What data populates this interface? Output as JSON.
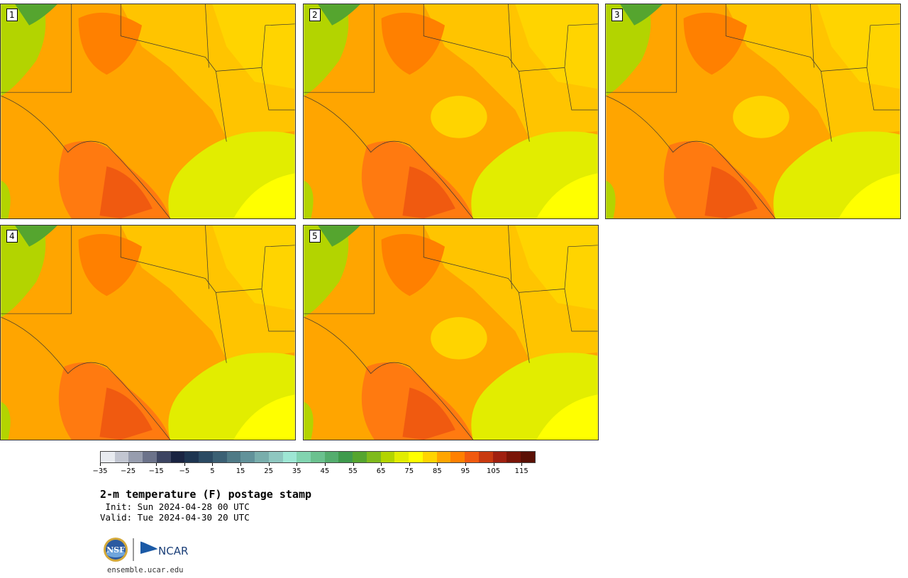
{
  "panels": [
    {
      "label": "1"
    },
    {
      "label": "2"
    },
    {
      "label": "3"
    },
    {
      "label": "4"
    },
    {
      "label": "5"
    }
  ],
  "colorbar": {
    "colors": [
      "#e8ebf0",
      "#c2c6d1",
      "#979dae",
      "#6c738a",
      "#3d4562",
      "#1a2442",
      "#1e3551",
      "#2b4a63",
      "#3b6074",
      "#4f7a86",
      "#62929a",
      "#79aeac",
      "#8fc7c0",
      "#9ee6d4",
      "#82d4b0",
      "#6bc18f",
      "#54ad6e",
      "#3f9a4d",
      "#55a52f",
      "#7fba1c",
      "#b3d400",
      "#e2ed00",
      "#ffff00",
      "#ffd400",
      "#ffa500",
      "#ff8000",
      "#f05a10",
      "#c83a10",
      "#a02010",
      "#7a1508",
      "#5a1005"
    ],
    "tick_labels": [
      "−35",
      "−25",
      "−15",
      "−5",
      "5",
      "15",
      "25",
      "35",
      "45",
      "55",
      "65",
      "75",
      "85",
      "95",
      "105",
      "115"
    ]
  },
  "title": "2-m temperature (F) postage stamp",
  "init": " Init: Sun 2024-04-28 00 UTC",
  "valid": "Valid: Tue 2024-04-30 20 UTC",
  "logos": {
    "nsf": "NSF",
    "ncar": "NCAR"
  },
  "url": "ensemble.ucar.edu"
}
